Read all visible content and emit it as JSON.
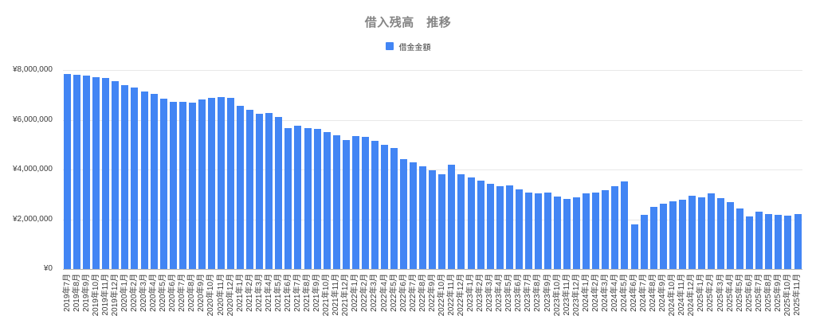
{
  "chart": {
    "title": "借入残高　推移",
    "legend_label": "借金金額",
    "bar_color": "#4285f4",
    "background_color": "#ffffff",
    "title_color": "#858585",
    "gridline_color": "#e8e8e8"
  },
  "chart_data": {
    "type": "bar",
    "title": "借入残高　推移",
    "series_name": "借金金額",
    "legend_position": "top",
    "grid": true,
    "bar_color": "#4285f4",
    "xlabel": "",
    "ylabel": "",
    "ylim": [
      0,
      8000000
    ],
    "y_tick_labels": [
      "¥0",
      "¥2,000,000",
      "¥4,000,000",
      "¥6,000,000",
      "¥8,000,000"
    ],
    "categories": [
      "2019年7月",
      "2019年8月",
      "2019年9月",
      "2019年10月",
      "2019年11月",
      "2019年12月",
      "2020年1月",
      "2020年2月",
      "2020年3月",
      "2020年4月",
      "2020年5月",
      "2020年6月",
      "2020年7月",
      "2020年8月",
      "2020年9月",
      "2020年10月",
      "2020年11月",
      "2020年12月",
      "2021年1月",
      "2021年2月",
      "2021年3月",
      "2021年4月",
      "2021年5月",
      "2021年6月",
      "2021年7月",
      "2021年8月",
      "2021年9月",
      "2021年10月",
      "2021年11月",
      "2021年12月",
      "2022年1月",
      "2022年2月",
      "2022年3月",
      "2022年4月",
      "2022年5月",
      "2022年6月",
      "2022年7月",
      "2022年8月",
      "2022年9月",
      "2022年10月",
      "2022年11月",
      "2022年12月",
      "2023年1月",
      "2023年2月",
      "2023年3月",
      "2023年4月",
      "2023年5月",
      "2023年6月",
      "2023年7月",
      "2023年8月",
      "2023年9月",
      "2023年10月",
      "2023年11月",
      "2023年12月",
      "2024年1月",
      "2024年2月",
      "2024年3月",
      "2024年4月",
      "2024年5月",
      "2024年6月",
      "2024年7月",
      "2024年8月",
      "2024年9月",
      "2024年10月",
      "2024年11月",
      "2024年12月",
      "2025年1月",
      "2025年2月",
      "2025年3月",
      "2025年4月",
      "2025年5月",
      "2025年6月",
      "2025年7月",
      "2025年8月",
      "2025年9月",
      "2025年10月",
      "2025年11月"
    ],
    "values": [
      7830000,
      7810000,
      7780000,
      7720000,
      7690000,
      7560000,
      7390000,
      7290000,
      7130000,
      7030000,
      6840000,
      6710000,
      6730000,
      6700000,
      6820000,
      6870000,
      6920000,
      6870000,
      6550000,
      6410000,
      6250000,
      6280000,
      6110000,
      5660000,
      5770000,
      5660000,
      5640000,
      5500000,
      5370000,
      5180000,
      5340000,
      5300000,
      5160000,
      5000000,
      4870000,
      4410000,
      4300000,
      4130000,
      3970000,
      3820000,
      4190000,
      3820000,
      3680000,
      3550000,
      3420000,
      3330000,
      3360000,
      3200000,
      3060000,
      3030000,
      3080000,
      2910000,
      2830000,
      2880000,
      3050000,
      3080000,
      3160000,
      3340000,
      3510000,
      1780000,
      2170000,
      2500000,
      2630000,
      2730000,
      2770000,
      2940000,
      2870000,
      3050000,
      2850000,
      2690000,
      2440000,
      2120000,
      2310000,
      2210000,
      2190000,
      2130000,
      2220000
    ]
  }
}
